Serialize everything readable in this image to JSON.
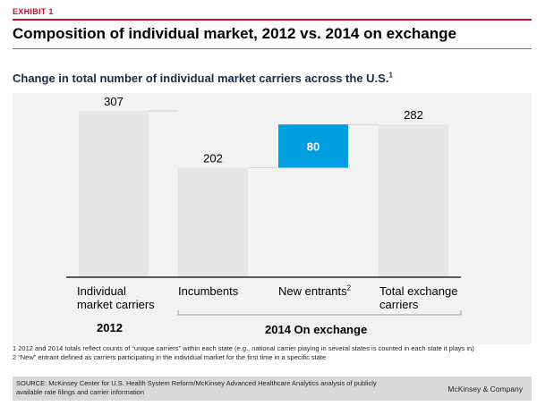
{
  "header": {
    "exhibit": "EXHIBIT 1",
    "title": "Composition of individual market, 2012 vs. 2014 on exchange"
  },
  "chart_data": {
    "type": "bar",
    "subtitle": "Change in total number of individual market carriers across the U.S.",
    "subtitle_footnote": "1",
    "categories": [
      {
        "lines": [
          "Individual",
          "market carriers"
        ],
        "sup": ""
      },
      {
        "lines": [
          "Incumbents"
        ],
        "sup": ""
      },
      {
        "lines": [
          "New entrants"
        ],
        "sup": "2"
      },
      {
        "lines": [
          "Total exchange",
          "carriers"
        ],
        "sup": ""
      }
    ],
    "bars": [
      {
        "base": 0,
        "value": 307,
        "label": "307",
        "color": "#e6e6e6"
      },
      {
        "base": 0,
        "value": 202,
        "label": "202",
        "color": "#e6e6e6"
      },
      {
        "base": 202,
        "value": 80,
        "label": "80",
        "color": "#009de0"
      },
      {
        "base": 0,
        "value": 282,
        "label": "282",
        "color": "#e6e6e6"
      }
    ],
    "ylim": [
      0,
      307
    ],
    "groups": [
      {
        "label": "2012",
        "categories": [
          0
        ]
      },
      {
        "label": "2014 On exchange",
        "categories": [
          1,
          2,
          3
        ]
      }
    ],
    "grid": false,
    "colors": {
      "bar": "#e6e6e6",
      "highlight": "#009de0",
      "plot_bg": "#f2f2f2"
    }
  },
  "footnotes": [
    "1 2012 and 2014 totals reflect counts of “unique carriers” within each state (e.g., national carrier playing in several states is counted in each state it plays in)",
    "2 “New” entrant defined as carriers participating in the individual market for the first time in a specific state"
  ],
  "source": {
    "text": "SOURCE: McKinsey Center for U.S. Health System Reform/McKinsey Advanced Healthcare Analytics analysis of publicly available rate filings and carrier information",
    "brand": "McKinsey & Company"
  }
}
